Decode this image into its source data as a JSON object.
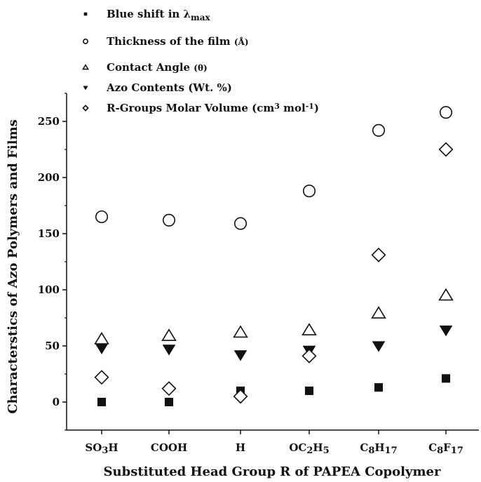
{
  "chart_data": {
    "type": "scatter",
    "xlabel": "Substituted Head Group R of PAPEA Copolymer",
    "ylabel": "Characterstics of Azo Polymers and Films",
    "categories": [
      {
        "label": "SO3H",
        "main": "SO",
        "sub": "3",
        "tail": "H"
      },
      {
        "label": "COOH",
        "main": "COOH",
        "sub": "",
        "tail": ""
      },
      {
        "label": "H",
        "main": "H",
        "sub": "",
        "tail": ""
      },
      {
        "label": "OC2H5",
        "main": "OC",
        "sub": "2",
        "tail": "H",
        "sub2": "5"
      },
      {
        "label": "C8H17",
        "main": "C",
        "sub": "8",
        "tail": "H",
        "sub2": "17"
      },
      {
        "label": "C8F17",
        "main": "C",
        "sub": "8",
        "tail": "F",
        "sub2": "17"
      }
    ],
    "ylim": [
      -25,
      275
    ],
    "yticks": [
      0,
      50,
      100,
      150,
      200,
      250
    ],
    "legend_position": "top-left",
    "series": [
      {
        "name": "Blue shift in λmax",
        "legend_main": "Blue shift in λ",
        "legend_sub": "max",
        "marker": "filled-square",
        "values": [
          0,
          0,
          10,
          10,
          13,
          21
        ]
      },
      {
        "name": "Thickness of the film (Å)",
        "legend_main": "Thickness of the film",
        "legend_suffix": "(Å)",
        "marker": "open-circle",
        "values": [
          165,
          162,
          159,
          188,
          242,
          258
        ]
      },
      {
        "name": "Contact Angle (θ)",
        "legend_main": "Contact Angle",
        "legend_suffix": "(θ)",
        "marker": "open-triangle-up",
        "values": [
          56,
          59,
          62,
          64,
          79,
          95
        ]
      },
      {
        "name": "Azo Contents (Wt. %)",
        "legend_main": "Azo Contents (Wt. %)",
        "marker": "filled-triangle-down",
        "values": [
          48,
          47,
          42,
          46,
          50,
          64
        ]
      },
      {
        "name": "R-Groups Molar Volume (cm3 mol-1)",
        "legend_main": "R-Groups Molar Volume (cm",
        "legend_sup1": "3",
        "legend_mid": " mol",
        "legend_sup2": "-1",
        "legend_end": ")",
        "marker": "open-diamond",
        "values": [
          22,
          12,
          5,
          41,
          131,
          225
        ]
      }
    ]
  }
}
